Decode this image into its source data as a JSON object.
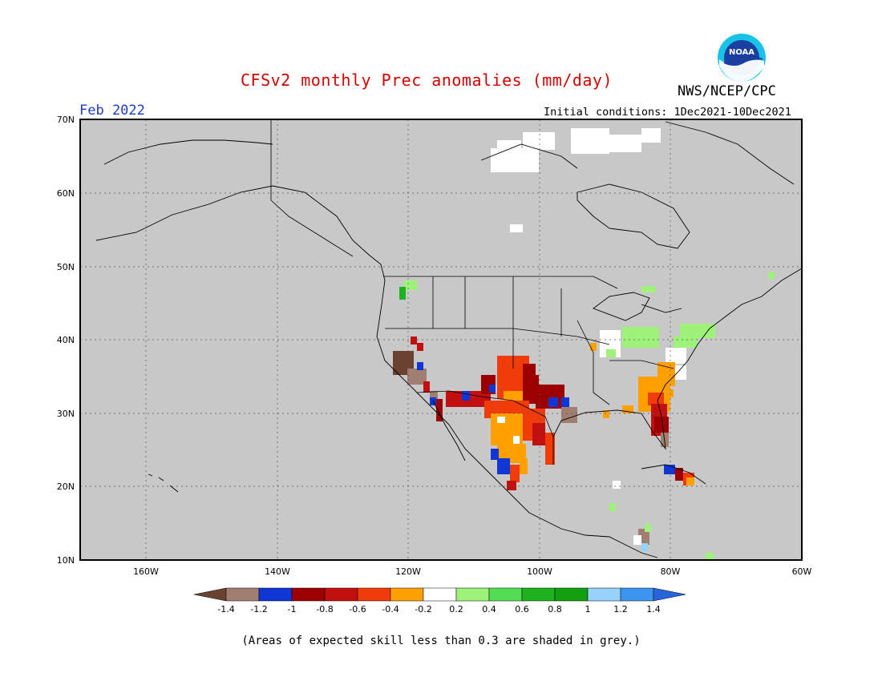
{
  "title": "CFSv2 monthly Prec anomalies (mm/day)",
  "agency": "NWS/NCEP/CPC",
  "logo_text": "NOAA",
  "period": "Feb 2022",
  "initial_conditions": "Initial conditions: 1Dec2021-10Dec2021",
  "footnote": "(Areas of expected skill less than 0.3 are shaded in grey.)",
  "lat_labels": [
    "70N",
    "60N",
    "50N",
    "40N",
    "30N",
    "20N",
    "10N"
  ],
  "lon_labels": [
    "160W",
    "140W",
    "120W",
    "100W",
    "80W",
    "60W"
  ],
  "colorbar": {
    "tick_labels": [
      "-1.4",
      "-1.2",
      "-1",
      "-0.8",
      "-0.6",
      "-0.4",
      "-0.2",
      "0.2",
      "0.4",
      "0.6",
      "0.8",
      "1",
      "1.2",
      "1.4"
    ],
    "colors": [
      "#6b4232",
      "#a07e72",
      "#1036d6",
      "#9c0000",
      "#c21010",
      "#f03c0a",
      "#ffa000",
      "#ffffff",
      "#9ef27a",
      "#52de52",
      "#1fb21f",
      "#10a010",
      "#96d2fa",
      "#3c96f0",
      "#2864dc"
    ]
  },
  "map": {
    "background_color": "#c8c8c8",
    "extent": {
      "lon": [
        -170,
        -60
      ],
      "lat": [
        10,
        70
      ]
    }
  }
}
